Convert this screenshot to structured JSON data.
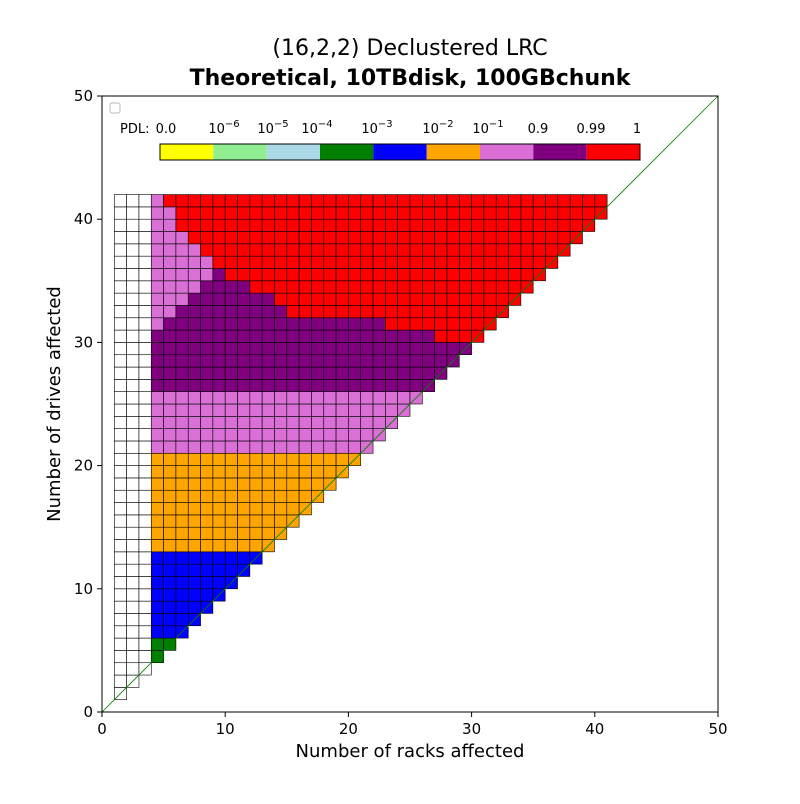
{
  "chart_data": {
    "type": "heatmap",
    "title": "(16,2,2) Declustered LRC",
    "subtitle": "Theoretical, 10TBdisk, 100GBchunk",
    "xlabel": "Number of racks affected",
    "ylabel": "Number of drives affected",
    "xlim": [
      0,
      50
    ],
    "ylim": [
      0,
      50
    ],
    "xticks": [
      0,
      10,
      20,
      30,
      40,
      50
    ],
    "yticks": [
      0,
      10,
      20,
      30,
      40,
      50
    ],
    "colorbar": {
      "label": "PDL:",
      "tick_labels": [
        {
          "base": "0.0",
          "exp": ""
        },
        {
          "base": "10",
          "exp": "−6"
        },
        {
          "base": "10",
          "exp": "−5"
        },
        {
          "base": "10",
          "exp": "−4"
        },
        {
          "base": "10",
          "exp": "−3"
        },
        {
          "base": "10",
          "exp": "−2"
        },
        {
          "base": "10",
          "exp": "−1"
        },
        {
          "base": "0.9",
          "exp": ""
        },
        {
          "base": "0.99",
          "exp": ""
        },
        {
          "base": "1",
          "exp": ""
        }
      ],
      "colors": [
        "#ffff00",
        "#90ee90",
        "#add8e6",
        "#008000",
        "#0000ff",
        "#ffa500",
        "#da70d6",
        "#800080",
        "#ff0000"
      ]
    },
    "legend": "top-left, empty",
    "diagonal_line": {
      "from": [
        0,
        0
      ],
      "to": [
        50,
        50
      ],
      "color": "#008000"
    },
    "cells": {
      "x_start": 1,
      "x_end": 40,
      "y_start": 1,
      "y_end": 41,
      "zero_color": "#ffffff",
      "rules": {
        "min_x_for_color": 4,
        "bands": [
          {
            "color": "#008000",
            "y_range": [
              4,
              5
            ]
          },
          {
            "color": "#0000ff",
            "y_range": [
              6,
              12
            ]
          },
          {
            "color": "#ffa500",
            "y_range": [
              13,
              20
            ]
          },
          {
            "color": "#da70d6",
            "y_range": [
              21,
              41
            ]
          }
        ],
        "purple_boundary_x": [
          [
            26,
            1
          ],
          [
            27,
            1
          ],
          [
            28,
            2
          ],
          [
            29,
            3
          ],
          [
            30,
            4
          ],
          [
            31,
            5
          ],
          [
            32,
            6
          ],
          [
            33,
            7
          ],
          [
            34,
            8
          ],
          [
            35,
            9
          ],
          [
            36,
            10
          ],
          [
            37,
            11
          ],
          [
            38,
            12
          ],
          [
            39,
            13
          ],
          [
            40,
            14
          ],
          [
            41,
            15
          ]
        ],
        "red_boundary_x": [
          [
            30,
            27
          ],
          [
            31,
            23
          ],
          [
            32,
            15
          ],
          [
            33,
            14
          ],
          [
            34,
            12
          ],
          [
            35,
            10
          ],
          [
            36,
            9
          ],
          [
            37,
            8
          ],
          [
            38,
            7
          ],
          [
            39,
            6
          ],
          [
            40,
            6
          ],
          [
            41,
            5
          ]
        ]
      }
    }
  }
}
